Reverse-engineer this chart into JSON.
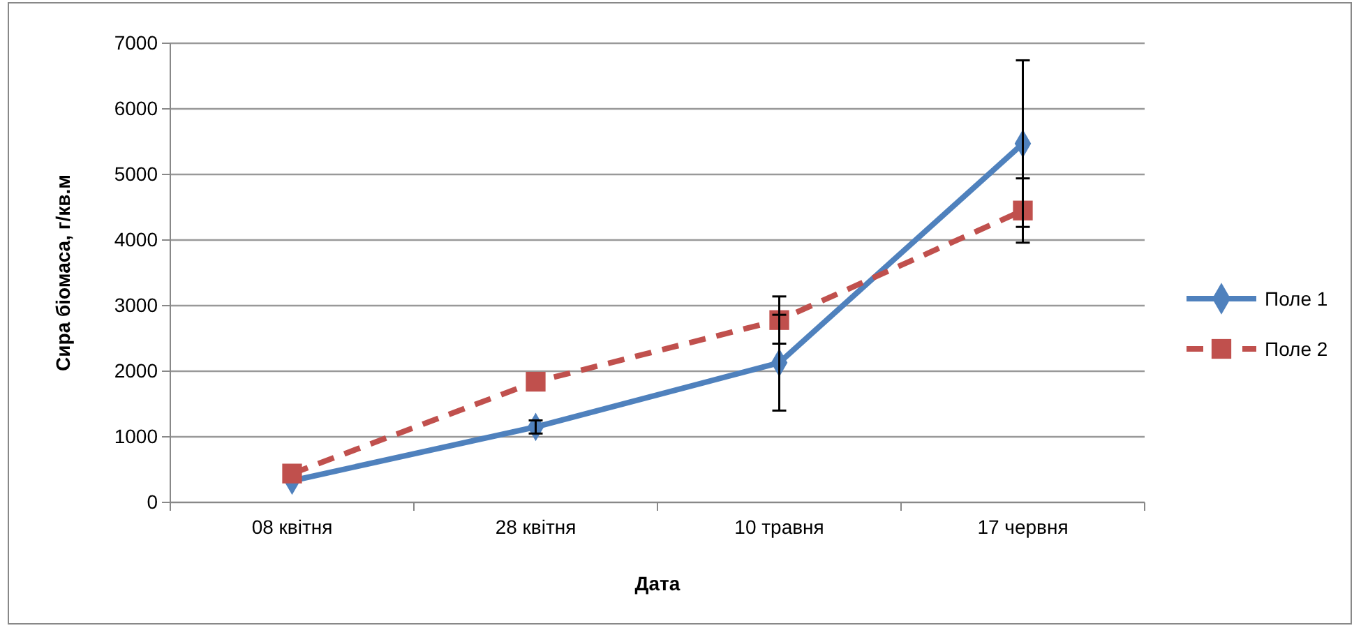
{
  "chart_data": {
    "type": "line",
    "xlabel": "Дата",
    "ylabel": "Сира біомаса, г/кв.м",
    "categories": [
      "08 квітня",
      "28 квітня",
      "10 травня",
      "17 червня"
    ],
    "series": [
      {
        "name": "Поле 1",
        "color": "#4f81bd",
        "values": [
          330,
          1150,
          2130,
          5470
        ],
        "errors": [
          null,
          100,
          730,
          1270
        ],
        "marker": "diamond",
        "line_style": "solid"
      },
      {
        "name": "Поле 2",
        "color": "#c0504d",
        "values": [
          440,
          1840,
          2780,
          4450
        ],
        "errors": [
          null,
          null,
          360,
          490
        ],
        "marker": "square",
        "line_style": "dashed"
      }
    ],
    "ylim": [
      0,
      7000
    ],
    "yticks": [
      0,
      1000,
      2000,
      3000,
      4000,
      5000,
      6000,
      7000
    ],
    "grid": "y",
    "legend": "right"
  }
}
